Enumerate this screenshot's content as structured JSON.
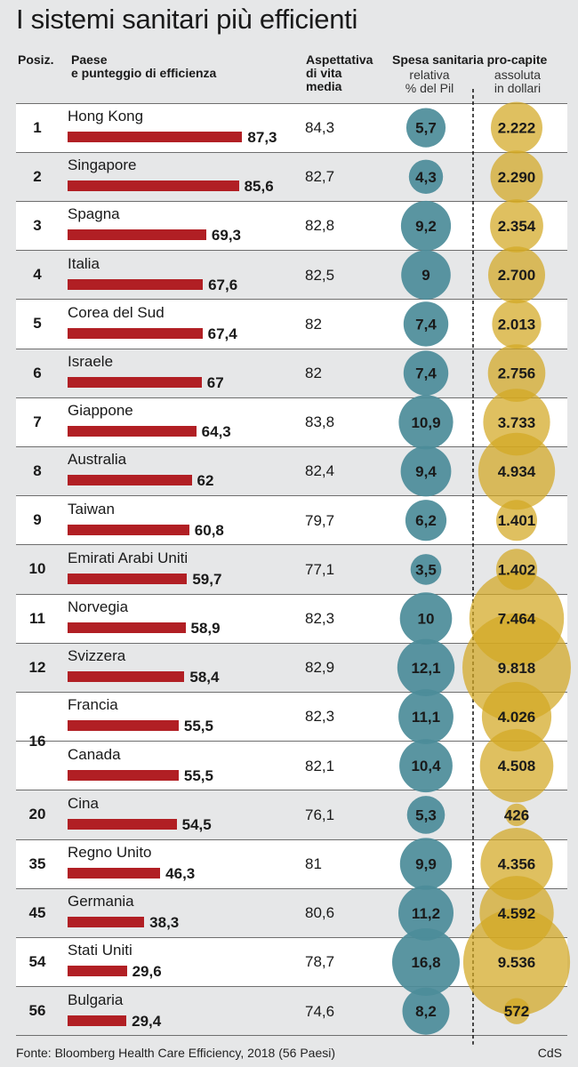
{
  "title": "I sistemi sanitari più efficienti",
  "headers": {
    "rank": "Posiz.",
    "country": "Paese\ne punteggio di efficienza",
    "life": "Aspettativa\ndi vita\nmedia",
    "spending": "Spesa sanitaria pro-capite",
    "relative": "relativa\n% del Pil",
    "absolute": "assoluta\nin dollari"
  },
  "footer": {
    "source": "Fonte: Bloomberg Health Care Efficiency, 2018 (56 Paesi)",
    "credit": "CdS"
  },
  "colors": {
    "bar": "#b11f24",
    "teal": "#4c8c99",
    "gold": "#d3a823"
  },
  "chart_data": {
    "type": "table",
    "columns": [
      "Posiz.",
      "Paese",
      "Punteggio di efficienza",
      "Aspettativa di vita media",
      "Spesa relativa % del Pil",
      "Spesa assoluta in dollari"
    ],
    "rows": [
      {
        "rank": "1",
        "country": "Hong Kong",
        "score": "87,3",
        "life": "84,3",
        "pct": "5,7",
        "usd": "2.222"
      },
      {
        "rank": "2",
        "country": "Singapore",
        "score": "85,6",
        "life": "82,7",
        "pct": "4,3",
        "usd": "2.290"
      },
      {
        "rank": "3",
        "country": "Spagna",
        "score": "69,3",
        "life": "82,8",
        "pct": "9,2",
        "usd": "2.354"
      },
      {
        "rank": "4",
        "country": "Italia",
        "score": "67,6",
        "life": "82,5",
        "pct": "9",
        "usd": "2.700"
      },
      {
        "rank": "5",
        "country": "Corea del Sud",
        "score": "67,4",
        "life": "82",
        "pct": "7,4",
        "usd": "2.013"
      },
      {
        "rank": "6",
        "country": "Israele",
        "score": "67",
        "life": "82",
        "pct": "7,4",
        "usd": "2.756"
      },
      {
        "rank": "7",
        "country": "Giappone",
        "score": "64,3",
        "life": "83,8",
        "pct": "10,9",
        "usd": "3.733"
      },
      {
        "rank": "8",
        "country": "Australia",
        "score": "62",
        "life": "82,4",
        "pct": "9,4",
        "usd": "4.934"
      },
      {
        "rank": "9",
        "country": "Taiwan",
        "score": "60,8",
        "life": "79,7",
        "pct": "6,2",
        "usd": "1.401"
      },
      {
        "rank": "10",
        "country": "Emirati Arabi Uniti",
        "score": "59,7",
        "life": "77,1",
        "pct": "3,5",
        "usd": "1.402"
      },
      {
        "rank": "11",
        "country": "Norvegia",
        "score": "58,9",
        "life": "82,3",
        "pct": "10",
        "usd": "7.464"
      },
      {
        "rank": "12",
        "country": "Svizzera",
        "score": "58,4",
        "life": "82,9",
        "pct": "12,1",
        "usd": "9.818"
      },
      {
        "rank": "16",
        "country": "Francia",
        "score": "55,5",
        "life": "82,3",
        "pct": "11,1",
        "usd": "4.026"
      },
      {
        "rank": "",
        "country": "Canada",
        "score": "55,5",
        "life": "82,1",
        "pct": "10,4",
        "usd": "4.508"
      },
      {
        "rank": "20",
        "country": "Cina",
        "score": "54,5",
        "life": "76,1",
        "pct": "5,3",
        "usd": "426"
      },
      {
        "rank": "35",
        "country": "Regno Unito",
        "score": "46,3",
        "life": "81",
        "pct": "9,9",
        "usd": "4.356"
      },
      {
        "rank": "45",
        "country": "Germania",
        "score": "38,3",
        "life": "80,6",
        "pct": "11,2",
        "usd": "4.592"
      },
      {
        "rank": "54",
        "country": "Stati Uniti",
        "score": "29,6",
        "life": "78,7",
        "pct": "16,8",
        "usd": "9.536"
      },
      {
        "rank": "56",
        "country": "Bulgaria",
        "score": "29,4",
        "life": "74,6",
        "pct": "8,2",
        "usd": "572"
      }
    ]
  }
}
